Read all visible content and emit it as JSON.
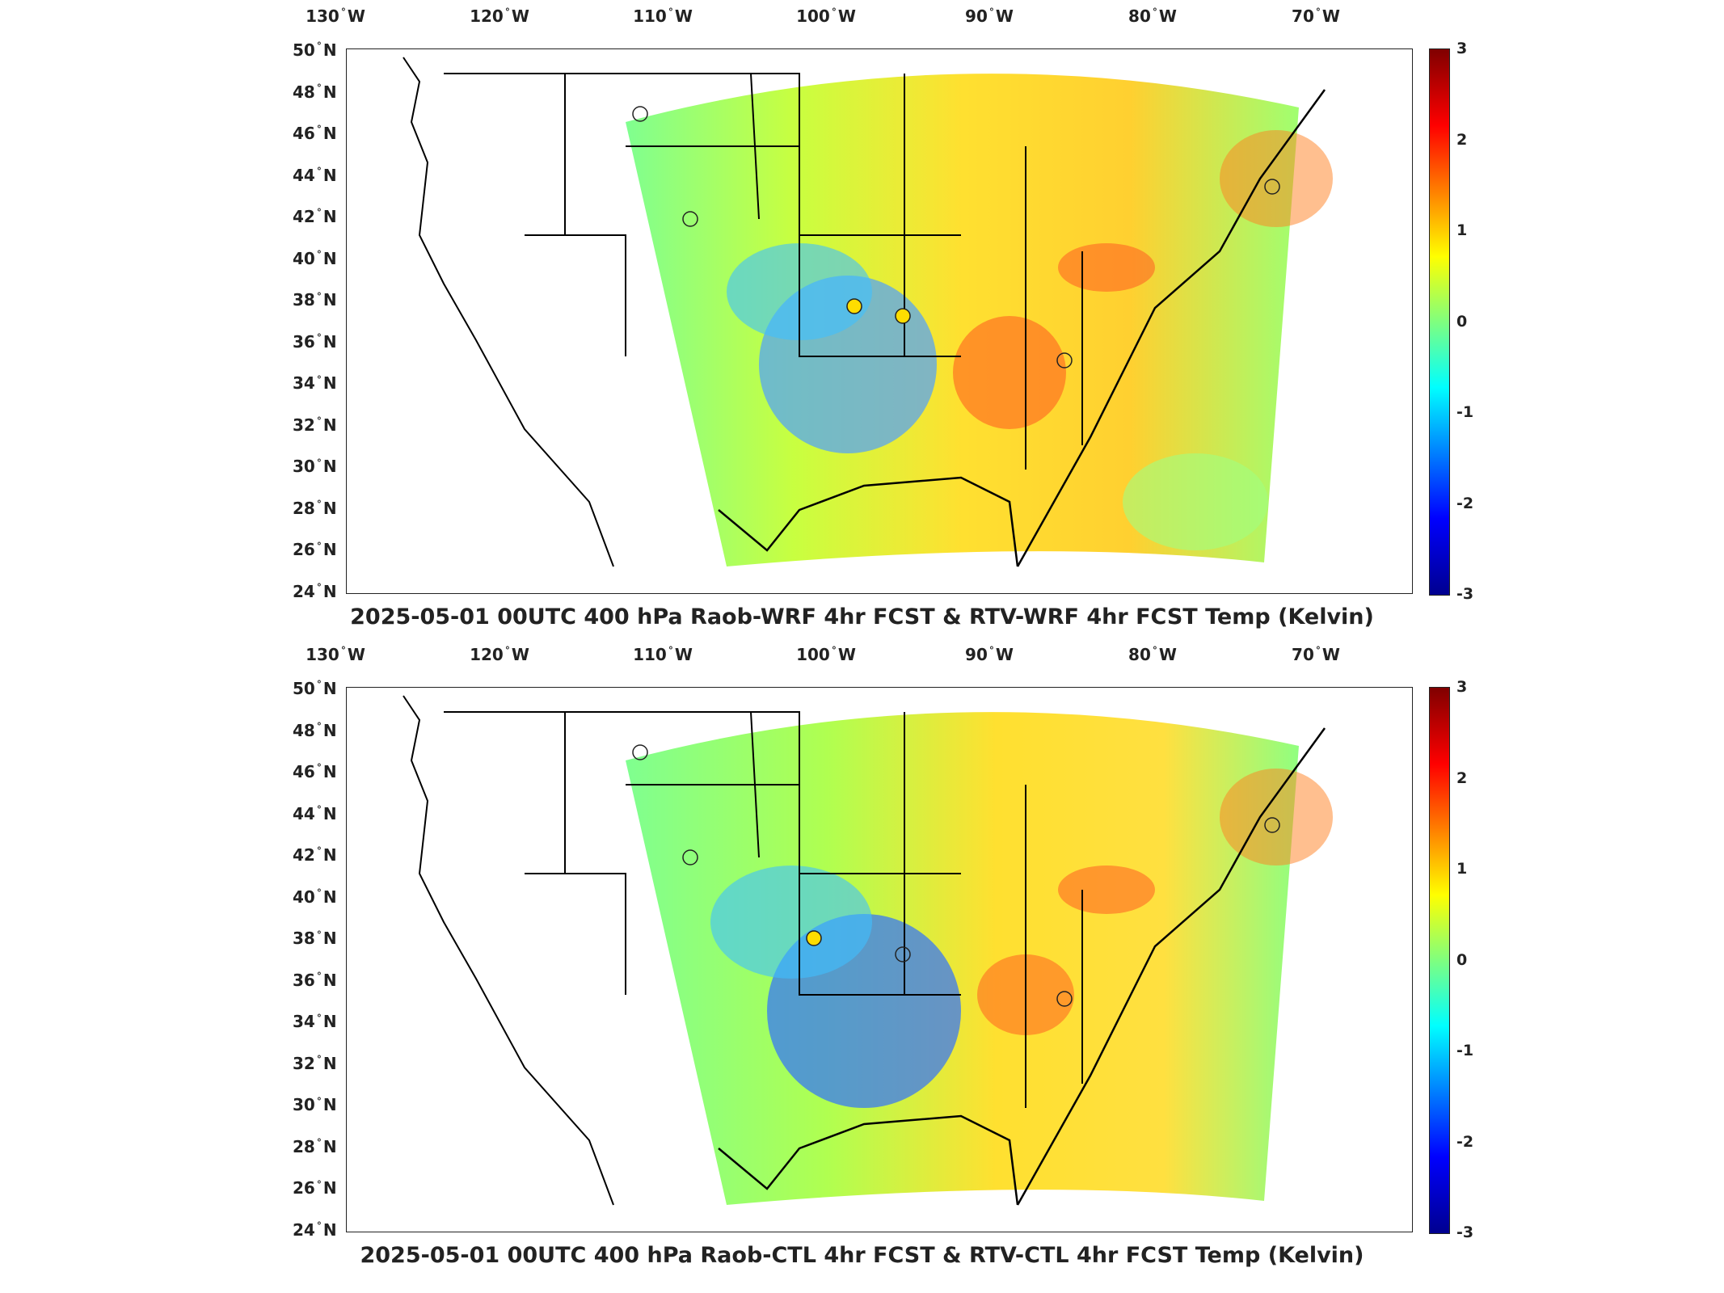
{
  "lon_labels": [
    {
      "deg": "130",
      "hemi": "W"
    },
    {
      "deg": "120",
      "hemi": "W"
    },
    {
      "deg": "110",
      "hemi": "W"
    },
    {
      "deg": "100",
      "hemi": "W"
    },
    {
      "deg": "90",
      "hemi": "W"
    },
    {
      "deg": "80",
      "hemi": "W"
    },
    {
      "deg": "70",
      "hemi": "W"
    }
  ],
  "lat_labels": [
    {
      "deg": "50",
      "hemi": "N"
    },
    {
      "deg": "48",
      "hemi": "N"
    },
    {
      "deg": "46",
      "hemi": "N"
    },
    {
      "deg": "44",
      "hemi": "N"
    },
    {
      "deg": "42",
      "hemi": "N"
    },
    {
      "deg": "40",
      "hemi": "N"
    },
    {
      "deg": "38",
      "hemi": "N"
    },
    {
      "deg": "36",
      "hemi": "N"
    },
    {
      "deg": "34",
      "hemi": "N"
    },
    {
      "deg": "32",
      "hemi": "N"
    },
    {
      "deg": "30",
      "hemi": "N"
    },
    {
      "deg": "28",
      "hemi": "N"
    },
    {
      "deg": "26",
      "hemi": "N"
    },
    {
      "deg": "24",
      "hemi": "N"
    }
  ],
  "colorbar": {
    "ticks": [
      "3",
      "2",
      "1",
      "0",
      "-1",
      "-2",
      "-3"
    ],
    "range": [
      -3,
      3
    ],
    "colormap": "jet"
  },
  "panels": [
    {
      "caption": "2025-05-01 00UTC 400 hPa Raob-WRF 4hr FCST & RTV-WRF 4hr FCST Temp (Kelvin)"
    },
    {
      "caption": "2025-05-01 00UTC 400 hPa Raob-CTL 4hr FCST & RTV-CTL 4hr FCST Temp (Kelvin)"
    }
  ],
  "colors": {
    "land_outline": "#000000",
    "marker_outline": "#222222",
    "frame": "#222222"
  }
}
